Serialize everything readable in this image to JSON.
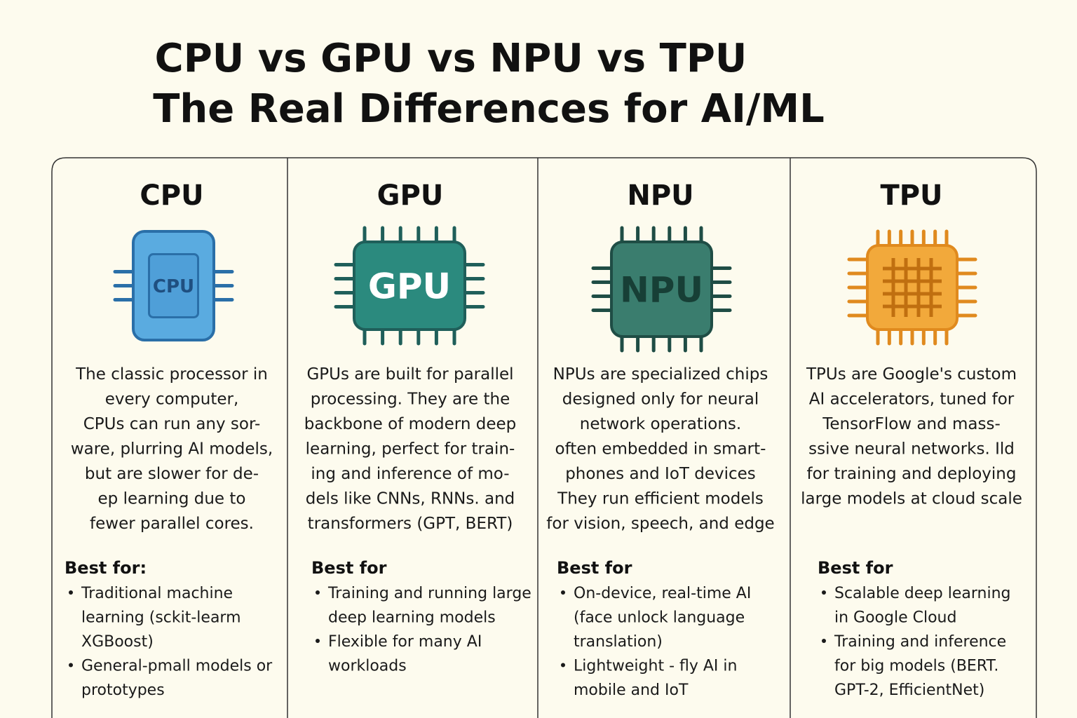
{
  "header": {
    "title_line1": "CPU vs GPU vs NPU vs TPU",
    "title_line2": "The Real Differences for AI/ML"
  },
  "columns": [
    {
      "name": "CPU",
      "chip_label": "CPU",
      "description": [
        "The classic processor in",
        "every computer,",
        "CPUs can run any sor-",
        "ware, plurring AI models,",
        "but are slower for de-",
        "ep learning due to",
        "fewer parallel cores."
      ],
      "best_for_heading": "Best for:",
      "bullets": [
        [
          "Traditional machine",
          "learning (sckit-learm",
          "XGBoost)"
        ],
        [
          "General-pmall models or",
          "prototypes"
        ]
      ]
    },
    {
      "name": "GPU",
      "chip_label": "GPU",
      "description": [
        "GPUs are built for parallel",
        "processing. They are the",
        "backbone of modern deep",
        "learning, perfect for train-",
        "ing and inference of mo-",
        "dels like CNNs, RNNs. and",
        "transformers (GPT, BERT)"
      ],
      "best_for_heading": "Best for",
      "bullets": [
        [
          "Training and running large",
          "deep learning models"
        ],
        [
          "Flexible for many AI",
          "workloads"
        ]
      ]
    },
    {
      "name": "NPU",
      "chip_label": "NPU",
      "description": [
        "NPUs are specialized chips",
        "designed only for neural",
        "network operations.",
        "often embedded in smart-",
        "phones and IoT devices",
        "They run efficient models",
        "for vision, speech, and edge"
      ],
      "best_for_heading": "Best for",
      "bullets": [
        [
          "On-device, real-time AI",
          "(face unlock  language",
          "translation)"
        ],
        [
          "Lightweight - fly AI in",
          "mobile and IoT"
        ]
      ]
    },
    {
      "name": "TPU",
      "description": [
        "TPUs are Google's custom",
        "AI accelerators, tuned for",
        "TensorFlow and mass-",
        "ssive neural networks. Ild",
        "for training and deploying",
        "large models at cloud scale"
      ],
      "best_for_heading": "Best for",
      "bullets": [
        [
          "Scalable deep learning",
          "in Google Cloud"
        ],
        [
          "Training and inference",
          "for big models (BERT.",
          "GPT-2, EfficientNet)"
        ]
      ]
    }
  ]
}
